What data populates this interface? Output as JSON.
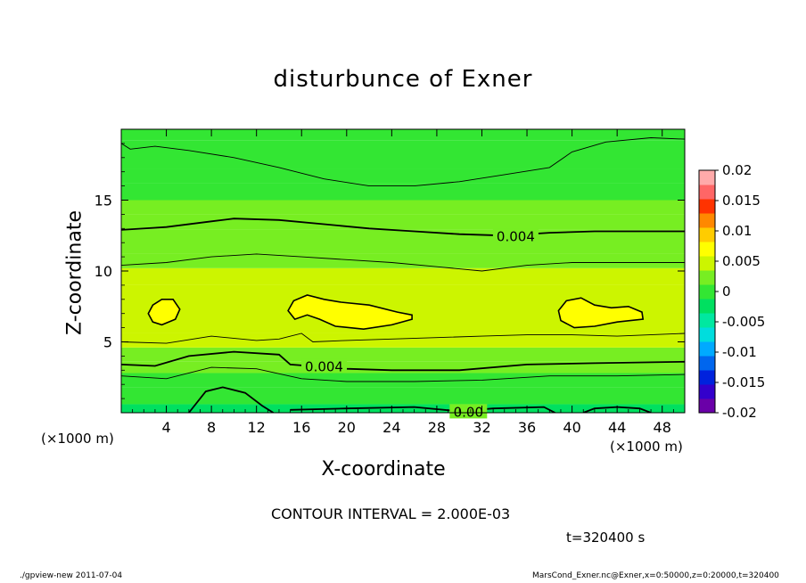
{
  "chart_data": {
    "type": "heatmap",
    "title": "disturbunce of Exner",
    "xlabel": "X-coordinate",
    "ylabel": "Z-coordinate",
    "x_unit": "(×1000 m)",
    "z_unit": "(×1000 m)",
    "xlim": [
      0,
      50
    ],
    "ylim": [
      0,
      20
    ],
    "x_ticks": [
      4,
      8,
      12,
      16,
      20,
      24,
      28,
      32,
      36,
      40,
      44,
      48
    ],
    "y_ticks": [
      5,
      10,
      15
    ],
    "contour_interval_text": "CONTOUR INTERVAL = 2.000E-03",
    "time_text": "t=320400 s",
    "contour_labels": [
      {
        "text": "0.004",
        "x": 35,
        "z": 12.5
      },
      {
        "text": "0.004",
        "x": 18,
        "z": 3.3
      },
      {
        "text": "0.00",
        "x": 30.8,
        "z": 0.1
      }
    ],
    "colorbar": {
      "ticks": [
        "0.02",
        "0.015",
        "0.01",
        "0.005",
        "0",
        "-0.005",
        "-0.01",
        "-0.015",
        "-0.02"
      ],
      "min": -0.02,
      "max": 0.02,
      "levels": [
        -0.02,
        -0.0175,
        -0.015,
        -0.0125,
        -0.01,
        -0.0075,
        -0.005,
        -0.0025,
        0,
        0.0025,
        0.005,
        0.0075,
        0.01,
        0.0125,
        0.015,
        0.0175,
        0.02
      ],
      "colors": [
        "#6a00a8",
        "#3300cc",
        "#0022dd",
        "#0066ee",
        "#00aaff",
        "#00dddd",
        "#00e8a0",
        "#00e060",
        "#33e633",
        "#77ee22",
        "#ccf500",
        "#ffff00",
        "#ffcc00",
        "#ff8800",
        "#ff3300",
        "#ff6666",
        "#ffaaaa"
      ]
    },
    "bands": [
      {
        "z_range": [
          0,
          0.6
        ],
        "value": -0.001
      },
      {
        "z_range": [
          0.6,
          1.8
        ],
        "value": 0.001
      },
      {
        "z_range": [
          1.8,
          2.8
        ],
        "value": 0.002
      },
      {
        "z_range": [
          2.8,
          3.6
        ],
        "value": 0.003
      },
      {
        "z_range": [
          3.6,
          4.6
        ],
        "value": 0.004
      },
      {
        "z_range": [
          4.6,
          5.6
        ],
        "value": 0.005
      },
      {
        "z_range": [
          5.6,
          9.0
        ],
        "value": 0.0065
      },
      {
        "z_range": [
          9.0,
          10.2
        ],
        "value": 0.005
      },
      {
        "z_range": [
          10.2,
          11.2
        ],
        "value": 0.0045
      },
      {
        "z_range": [
          11.2,
          12.9
        ],
        "value": 0.004
      },
      {
        "z_range": [
          12.9,
          14.0
        ],
        "value": 0.003
      },
      {
        "z_range": [
          14.0,
          15.0
        ],
        "value": 0.0025
      },
      {
        "z_range": [
          15.0,
          16.2
        ],
        "value": 0.002
      },
      {
        "z_range": [
          16.2,
          17.2
        ],
        "value": 0.0015
      },
      {
        "z_range": [
          17.2,
          19.2
        ],
        "value": 0.001
      },
      {
        "z_range": [
          19.2,
          20
        ],
        "value": 0.0005
      }
    ],
    "contour_lines": [
      {
        "value": 0.002,
        "points": [
          [
            0,
            19.0
          ],
          [
            0.8,
            18.6
          ],
          [
            3,
            18.8
          ],
          [
            6,
            18.5
          ],
          [
            10,
            18.0
          ],
          [
            14,
            17.3
          ],
          [
            18,
            16.5
          ],
          [
            22,
            16.0
          ],
          [
            26,
            16.0
          ],
          [
            30,
            16.3
          ],
          [
            34,
            16.8
          ],
          [
            38,
            17.3
          ],
          [
            40,
            18.4
          ],
          [
            43,
            19.1
          ],
          [
            47,
            19.4
          ],
          [
            50,
            19.3
          ]
        ]
      },
      {
        "value": 0.004,
        "points": [
          [
            0,
            12.9
          ],
          [
            4,
            13.1
          ],
          [
            8,
            13.5
          ],
          [
            10,
            13.7
          ],
          [
            14,
            13.6
          ],
          [
            18,
            13.3
          ],
          [
            22,
            13.0
          ],
          [
            26,
            12.8
          ],
          [
            30,
            12.6
          ],
          [
            34,
            12.5
          ],
          [
            38,
            12.7
          ],
          [
            42,
            12.8
          ],
          [
            46,
            12.8
          ],
          [
            50,
            12.8
          ]
        ]
      },
      {
        "value": 0.005,
        "points": [
          [
            0,
            10.4
          ],
          [
            4,
            10.6
          ],
          [
            8,
            11.0
          ],
          [
            12,
            11.2
          ],
          [
            16,
            11.0
          ],
          [
            20,
            10.8
          ],
          [
            24,
            10.6
          ],
          [
            28,
            10.3
          ],
          [
            32,
            10.0
          ],
          [
            36,
            10.4
          ],
          [
            40,
            10.6
          ],
          [
            44,
            10.6
          ],
          [
            50,
            10.6
          ]
        ]
      },
      {
        "value": 0.005,
        "points": [
          [
            0,
            5.0
          ],
          [
            4,
            4.9
          ],
          [
            8,
            5.4
          ],
          [
            12,
            5.1
          ],
          [
            14,
            5.2
          ],
          [
            16,
            5.6
          ],
          [
            17,
            5.0
          ],
          [
            20,
            5.1
          ],
          [
            24,
            5.2
          ],
          [
            28,
            5.3
          ],
          [
            32,
            5.4
          ],
          [
            36,
            5.5
          ],
          [
            40,
            5.5
          ],
          [
            44,
            5.4
          ],
          [
            50,
            5.6
          ]
        ]
      },
      {
        "value": 0.004,
        "points": [
          [
            0,
            3.4
          ],
          [
            3,
            3.3
          ],
          [
            6,
            4.0
          ],
          [
            10,
            4.3
          ],
          [
            14,
            4.1
          ],
          [
            15,
            3.4
          ],
          [
            20,
            3.1
          ],
          [
            24,
            3.0
          ],
          [
            30,
            3.0
          ],
          [
            36,
            3.4
          ],
          [
            42,
            3.5
          ],
          [
            50,
            3.6
          ]
        ]
      },
      {
        "value": 0.003,
        "points": [
          [
            0,
            2.6
          ],
          [
            4,
            2.4
          ],
          [
            8,
            3.2
          ],
          [
            12,
            3.1
          ],
          [
            16,
            2.4
          ],
          [
            20,
            2.2
          ],
          [
            26,
            2.2
          ],
          [
            32,
            2.3
          ],
          [
            38,
            2.6
          ],
          [
            44,
            2.6
          ],
          [
            50,
            2.7
          ]
        ]
      },
      {
        "value": 0.0,
        "points": [
          [
            6,
            0
          ],
          [
            7.5,
            1.5
          ],
          [
            9,
            1.8
          ],
          [
            11,
            1.4
          ],
          [
            12.5,
            0.5
          ],
          [
            13.5,
            0
          ]
        ]
      },
      {
        "value": 0.0,
        "points": [
          [
            15,
            0.2
          ],
          [
            20,
            0.3
          ],
          [
            26,
            0.4
          ],
          [
            30,
            0.1
          ],
          [
            33,
            0.3
          ],
          [
            37.5,
            0.4
          ],
          [
            38.5,
            0
          ]
        ]
      },
      {
        "value": 0.0,
        "points": [
          [
            41,
            0
          ],
          [
            42,
            0.3
          ],
          [
            44,
            0.4
          ],
          [
            46,
            0.3
          ],
          [
            47,
            0
          ]
        ]
      }
    ],
    "closed_contours": [
      {
        "value": 0.008,
        "points": [
          [
            2.4,
            7.0
          ],
          [
            2.8,
            7.6
          ],
          [
            3.6,
            8.0
          ],
          [
            4.6,
            8.0
          ],
          [
            5.2,
            7.3
          ],
          [
            4.8,
            6.6
          ],
          [
            3.6,
            6.2
          ],
          [
            2.8,
            6.4
          ]
        ]
      },
      {
        "value": 0.008,
        "points": [
          [
            14.8,
            7.2
          ],
          [
            15.3,
            7.9
          ],
          [
            16.5,
            8.3
          ],
          [
            18.0,
            8.0
          ],
          [
            19.5,
            7.8
          ],
          [
            22,
            7.6
          ],
          [
            24.5,
            7.1
          ],
          [
            25.8,
            6.9
          ],
          [
            25.8,
            6.6
          ],
          [
            24,
            6.2
          ],
          [
            21.5,
            5.9
          ],
          [
            19,
            6.1
          ],
          [
            17.6,
            6.6
          ],
          [
            16.5,
            6.9
          ],
          [
            15.4,
            6.6
          ]
        ]
      },
      {
        "value": 0.008,
        "points": [
          [
            38.8,
            7.2
          ],
          [
            39.5,
            7.9
          ],
          [
            40.8,
            8.1
          ],
          [
            42,
            7.6
          ],
          [
            43.5,
            7.4
          ],
          [
            45,
            7.5
          ],
          [
            46.2,
            7.1
          ],
          [
            46.3,
            6.6
          ],
          [
            44,
            6.4
          ],
          [
            42,
            6.1
          ],
          [
            40.2,
            6.0
          ],
          [
            39.0,
            6.5
          ]
        ]
      }
    ]
  },
  "footer": {
    "left": "./gpview-new   2011-07-04",
    "right": "MarsCond_Exner.nc@Exner,x=0:50000,z=0:20000,t=320400"
  }
}
